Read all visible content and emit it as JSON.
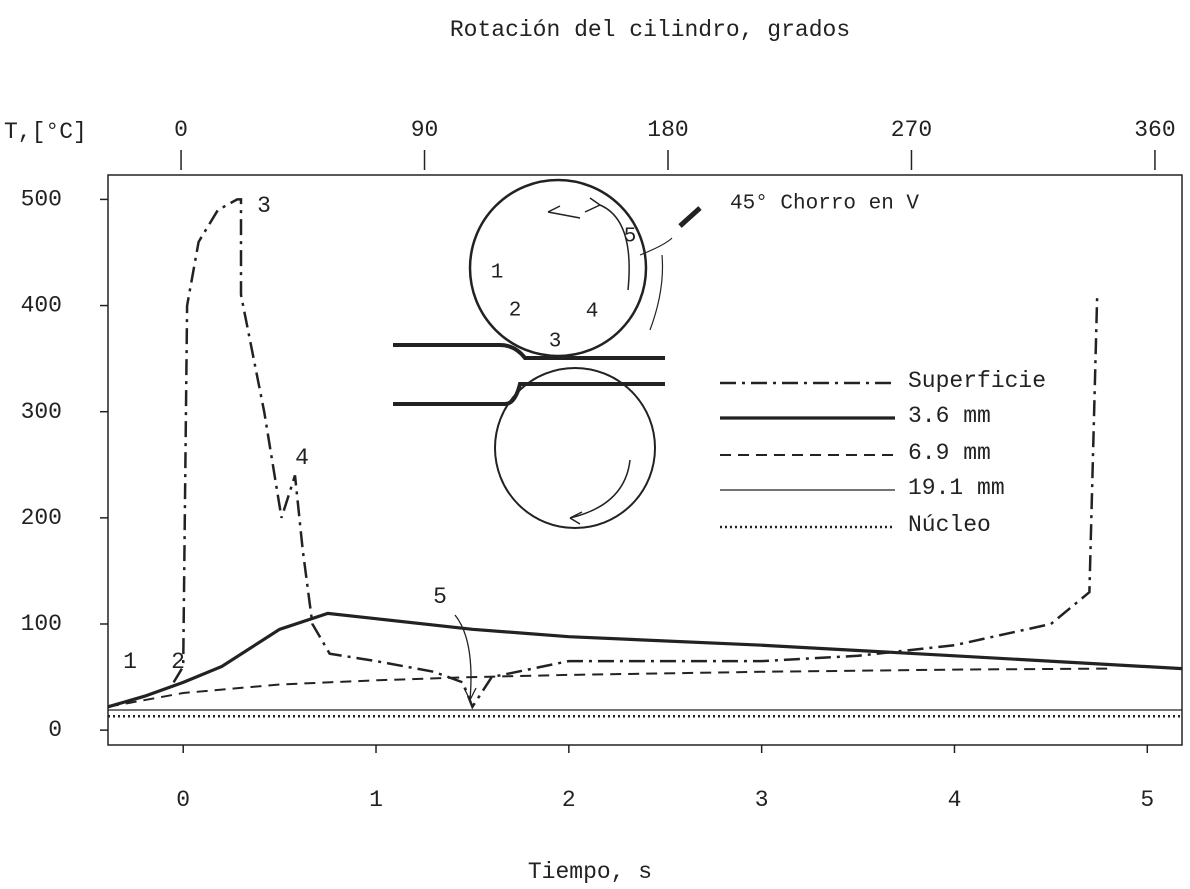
{
  "chart_data": {
    "type": "line",
    "title": "Rotación del cilindro, grados",
    "y_label": "T,[°C]",
    "x_label": "Tiempo, s",
    "xlim": [
      -0.39,
      5.18
    ],
    "xticks": [
      0,
      1,
      2,
      3,
      4,
      5
    ],
    "ylim": [
      -14,
      523
    ],
    "yticks": [
      0,
      100,
      200,
      300,
      400,
      500
    ],
    "x2lim": [
      -27,
      370
    ],
    "x2ticks": [
      0,
      90,
      180,
      270,
      360
    ],
    "grid": false,
    "legend": "right",
    "series": [
      {
        "name": "Superficie",
        "color": "#222",
        "x": [
          -0.05,
          0.0,
          0.02,
          0.08,
          0.18,
          0.28,
          0.3,
          0.3,
          0.42,
          0.51,
          0.58,
          0.62,
          0.67,
          0.76,
          1.0,
          1.3,
          1.45,
          1.5,
          1.6,
          2.0,
          3.0,
          3.5,
          4.0,
          4.5,
          4.7,
          4.74
        ],
        "values": [
          45,
          60,
          400,
          460,
          490,
          500,
          500,
          410,
          300,
          200,
          240,
          170,
          100,
          72,
          65,
          55,
          45,
          22,
          50,
          65,
          65,
          70,
          80,
          100,
          130,
          410
        ]
      },
      {
        "name": "3.6 mm",
        "color": "#222",
        "x": [
          -0.39,
          -0.2,
          0.0,
          0.2,
          0.5,
          0.75,
          1.0,
          1.5,
          2.0,
          3.0,
          4.0,
          5.18
        ],
        "values": [
          22,
          32,
          45,
          60,
          95,
          110,
          105,
          95,
          88,
          80,
          70,
          58
        ]
      },
      {
        "name": "6.9 mm",
        "color": "#222",
        "x": [
          -0.39,
          0.0,
          0.5,
          1.0,
          1.5,
          2.0,
          3.0,
          4.0,
          4.8
        ],
        "values": [
          22,
          35,
          43,
          47,
          50,
          52,
          55,
          57,
          58
        ]
      },
      {
        "name": "19.1 mm",
        "color": "#222",
        "x": [
          -0.39,
          5.18
        ],
        "values": [
          19,
          19
        ]
      },
      {
        "name": "Núcleo",
        "color": "#222",
        "x": [
          -0.39,
          5.18
        ],
        "values": [
          13,
          13
        ]
      }
    ],
    "annotations": [
      "1",
      "2",
      "3",
      "4",
      "5",
      "45° Chorro en V",
      "1",
      "2",
      "3",
      "4",
      "5"
    ]
  }
}
